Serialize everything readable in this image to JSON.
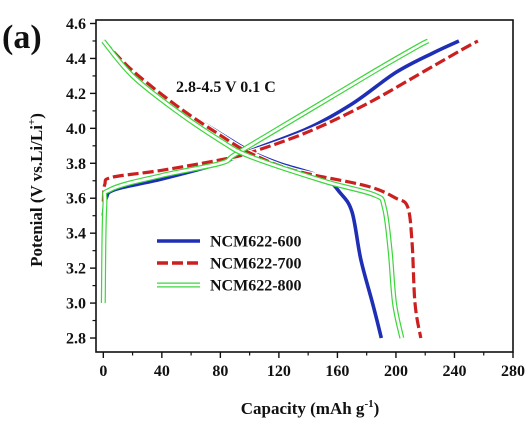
{
  "chart_data": {
    "type": "line",
    "panel_label": "(a)",
    "annotation": "2.8-4.5 V  0.1 C",
    "xlabel": "Capacity (mAh g",
    "xlabel_sup": "-1",
    "xlabel_end": ")",
    "ylabel": "Potenial (V vs.Li/Li",
    "ylabel_sup": "+",
    "ylabel_end": ")",
    "xlim": [
      -5,
      280
    ],
    "ylim": [
      2.72,
      4.62
    ],
    "xticks": [
      0,
      40,
      80,
      120,
      160,
      200,
      240,
      280
    ],
    "yticks": [
      2.8,
      3.0,
      3.2,
      3.4,
      3.6,
      3.8,
      4.0,
      4.2,
      4.4,
      4.6
    ],
    "legend_position": "lower-left inside",
    "series": [
      {
        "name": "NCM622-600",
        "color": "#1f2fb5",
        "style": "solid",
        "charge": [
          [
            0,
            3.5
          ],
          [
            2,
            3.6
          ],
          [
            8,
            3.65
          ],
          [
            40,
            3.71
          ],
          [
            80,
            3.8
          ],
          [
            100,
            3.87
          ],
          [
            140,
            4.0
          ],
          [
            170,
            4.14
          ],
          [
            200,
            4.32
          ],
          [
            225,
            4.43
          ],
          [
            243,
            4.5
          ]
        ],
        "discharge": [
          [
            0,
            4.5
          ],
          [
            20,
            4.33
          ],
          [
            50,
            4.13
          ],
          [
            80,
            3.97
          ],
          [
            100,
            3.87
          ],
          [
            120,
            3.8
          ],
          [
            150,
            3.72
          ],
          [
            162,
            3.63
          ],
          [
            170,
            3.52
          ],
          [
            176,
            3.25
          ],
          [
            184,
            3.0
          ],
          [
            190,
            2.8
          ]
        ]
      },
      {
        "name": "NCM622-700",
        "color": "#cc1f1f",
        "style": "dashed",
        "charge": [
          [
            0,
            3.58
          ],
          [
            1,
            3.68
          ],
          [
            6,
            3.72
          ],
          [
            40,
            3.76
          ],
          [
            80,
            3.82
          ],
          [
            100,
            3.86
          ],
          [
            140,
            3.98
          ],
          [
            180,
            4.14
          ],
          [
            220,
            4.33
          ],
          [
            245,
            4.45
          ],
          [
            256,
            4.5
          ]
        ],
        "discharge": [
          [
            0,
            4.5
          ],
          [
            20,
            4.33
          ],
          [
            50,
            4.13
          ],
          [
            80,
            3.96
          ],
          [
            100,
            3.86
          ],
          [
            130,
            3.76
          ],
          [
            180,
            3.67
          ],
          [
            200,
            3.6
          ],
          [
            208,
            3.55
          ],
          [
            211,
            3.35
          ],
          [
            213,
            3.0
          ],
          [
            217,
            2.8
          ]
        ]
      },
      {
        "name": "NCM622-800",
        "color": "#3cd63c",
        "style": "solid",
        "charge": [
          [
            0,
            3.0
          ],
          [
            1,
            3.55
          ],
          [
            5,
            3.65
          ],
          [
            40,
            3.73
          ],
          [
            80,
            3.8
          ],
          [
            90,
            3.85
          ],
          [
            120,
            4.0
          ],
          [
            160,
            4.2
          ],
          [
            190,
            4.35
          ],
          [
            215,
            4.47
          ],
          [
            222,
            4.5
          ]
        ],
        "discharge": [
          [
            0,
            4.5
          ],
          [
            20,
            4.3
          ],
          [
            50,
            4.1
          ],
          [
            80,
            3.93
          ],
          [
            100,
            3.84
          ],
          [
            150,
            3.7
          ],
          [
            185,
            3.62
          ],
          [
            192,
            3.55
          ],
          [
            196,
            3.3
          ],
          [
            199,
            3.0
          ],
          [
            204,
            2.8
          ]
        ]
      }
    ]
  }
}
